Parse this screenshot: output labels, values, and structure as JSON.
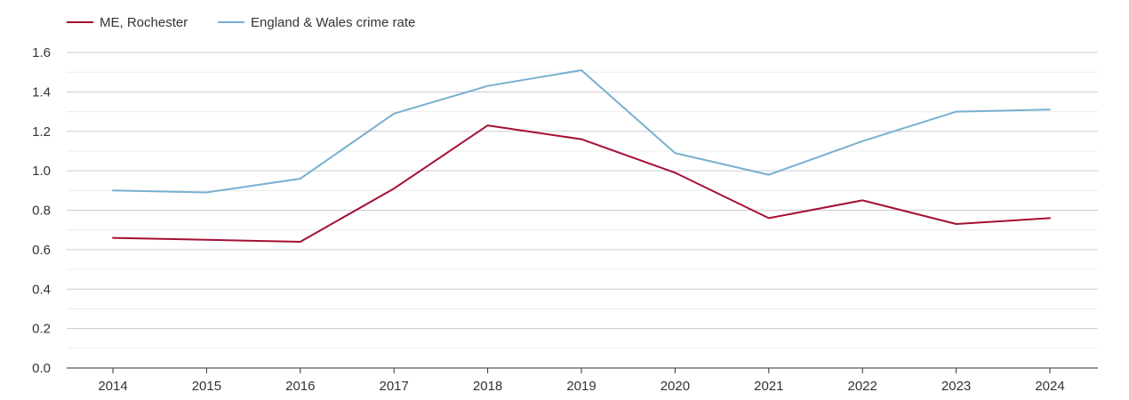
{
  "chart_data": {
    "type": "line",
    "title": "",
    "xlabel": "",
    "ylabel": "",
    "categories": [
      "2014",
      "2015",
      "2016",
      "2017",
      "2018",
      "2019",
      "2020",
      "2021",
      "2022",
      "2023",
      "2024"
    ],
    "ylim": [
      0,
      1.6
    ],
    "yticks": [
      "0.0",
      "0.2",
      "0.4",
      "0.6",
      "0.8",
      "1.0",
      "1.2",
      "1.4",
      "1.6"
    ],
    "grid": true,
    "legend_position": "top-left",
    "series": [
      {
        "name": "ME, Rochester",
        "color": "#a50f33",
        "values": [
          0.66,
          0.65,
          0.64,
          0.91,
          1.23,
          1.16,
          0.99,
          0.76,
          0.85,
          0.73,
          0.76
        ]
      },
      {
        "name": "England & Wales crime rate",
        "color": "#78b0d1",
        "values": [
          0.9,
          0.89,
          0.96,
          1.29,
          1.43,
          1.51,
          1.09,
          0.98,
          1.15,
          1.3,
          1.31
        ]
      }
    ]
  }
}
